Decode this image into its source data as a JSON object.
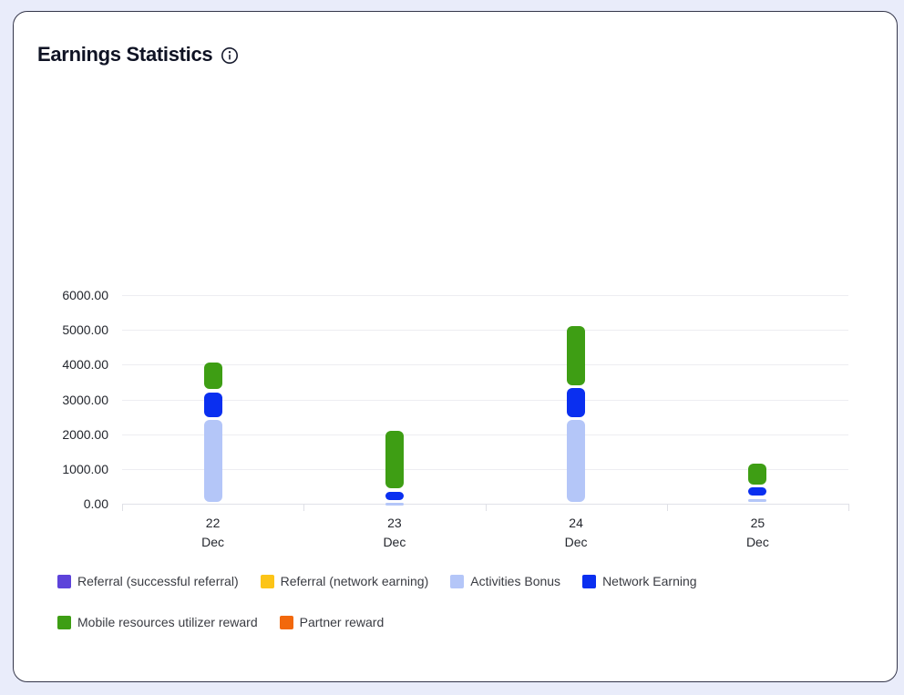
{
  "page": {
    "background_color": "#e9ecfa",
    "card_border_color": "#34364a"
  },
  "header": {
    "title": "Earnings Statistics",
    "info_icon": "info-icon"
  },
  "chart_data": {
    "type": "bar",
    "stacked": true,
    "title": "Earnings Statistics",
    "xlabel": "",
    "ylabel": "",
    "ylim": [
      0,
      6000
    ],
    "grid": true,
    "legend_position": "bottom",
    "y_ticks": [
      0,
      1000,
      2000,
      3000,
      4000,
      5000,
      6000
    ],
    "y_tick_labels": [
      "0.00",
      "1000.00",
      "2000.00",
      "3000.00",
      "4000.00",
      "5000.00",
      "6000.00"
    ],
    "categories": [
      {
        "line1": "22",
        "line2": "Dec"
      },
      {
        "line1": "23",
        "line2": "Dec"
      },
      {
        "line1": "24",
        "line2": "Dec"
      },
      {
        "line1": "25",
        "line2": "Dec"
      }
    ],
    "series": [
      {
        "name": "Referral (successful referral)",
        "color": "#5d43da",
        "values": [
          0,
          0,
          0,
          0
        ]
      },
      {
        "name": "Referral (network earning)",
        "color": "#fcc417",
        "values": [
          0,
          0,
          0,
          0
        ]
      },
      {
        "name": "Activities Bonus",
        "color": "#b4c6f8",
        "values": [
          2450,
          60,
          2450,
          180
        ]
      },
      {
        "name": "Network Earning",
        "color": "#0a2ff0",
        "values": [
          800,
          330,
          920,
          330
        ]
      },
      {
        "name": "Mobile resources utilizer reward",
        "color": "#3e9e14",
        "values": [
          850,
          1740,
          1780,
          680
        ]
      },
      {
        "name": "Partner reward",
        "color": "#f2680c",
        "values": [
          0,
          0,
          0,
          0
        ]
      }
    ]
  }
}
